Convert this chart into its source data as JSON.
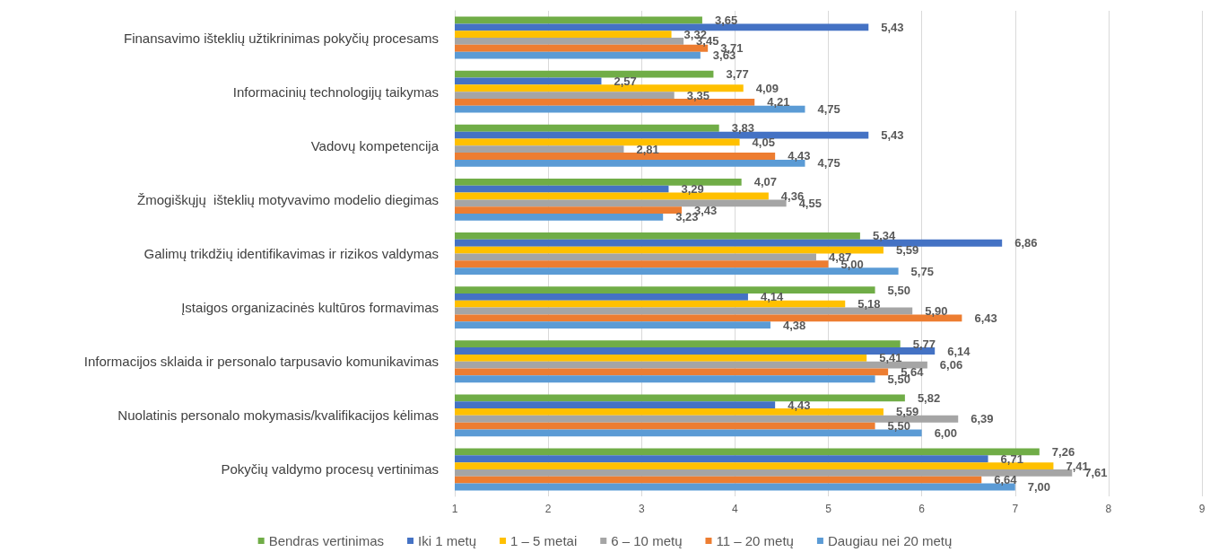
{
  "chart_data": {
    "type": "bar",
    "orientation": "horizontal",
    "categories": [
      "Finansavimo išteklių užtikrinimas pokyčių procesams",
      "Informacinių technologijų taikymas",
      "Vadovų kompetencija",
      "Žmogiškųjų  išteklių motyvavimo modelio diegimas",
      "Galimų trikdžių identifikavimas ir rizikos valdymas",
      "Įstaigos organizacinės kultūros formavimas",
      "Informacijos sklaida ir personalo tarpusavio komunikavimas",
      "Nuolatinis personalo mokymasis/kvalifikacijos kėlimas",
      "Pokyčių valdymo procesų vertinimas"
    ],
    "series": [
      {
        "name": "Bendras vertinimas",
        "color": "#70ad47",
        "values": [
          3.65,
          3.77,
          3.83,
          4.07,
          5.34,
          5.5,
          5.77,
          5.82,
          7.26
        ],
        "value_labels": [
          "3,65",
          "3,77",
          "3,83",
          "4,07",
          "5,34",
          "5,50",
          "5,77",
          "5,82",
          "7,26"
        ]
      },
      {
        "name": "Iki 1 metų",
        "color": "#4472c4",
        "values": [
          5.43,
          2.57,
          5.43,
          3.29,
          6.86,
          4.14,
          6.14,
          4.43,
          6.71
        ],
        "value_labels": [
          "5,43",
          "2,57",
          "5,43",
          "3,29",
          "6,86",
          "4,14",
          "6,14",
          "4,43",
          "6,71"
        ]
      },
      {
        "name": "1 – 5 metai",
        "color": "#ffc000",
        "values": [
          3.32,
          4.09,
          4.05,
          4.36,
          5.59,
          5.18,
          5.41,
          5.59,
          7.41
        ],
        "value_labels": [
          "3,32",
          "4,09",
          "4,05",
          "4,36",
          "5,59",
          "5,18",
          "5,41",
          "5,59",
          "7,41"
        ]
      },
      {
        "name": "6 – 10 metų",
        "color": "#a5a5a5",
        "values": [
          3.45,
          3.35,
          2.81,
          4.55,
          4.87,
          5.9,
          6.06,
          6.39,
          7.61
        ],
        "value_labels": [
          "3,45",
          "3,35",
          "2,81",
          "4,55",
          "4,87",
          "5,90",
          "6,06",
          "6,39",
          "7,61"
        ]
      },
      {
        "name": "11 – 20 metų",
        "color": "#ed7d31",
        "values": [
          3.71,
          4.21,
          4.43,
          3.43,
          5.0,
          6.43,
          5.64,
          5.5,
          6.64
        ],
        "value_labels": [
          "3,71",
          "4,21",
          "4,43",
          "3,43",
          "5,00",
          "6,43",
          "5,64",
          "5,50",
          "6,64"
        ]
      },
      {
        "name": "Daugiau nei 20 metų",
        "color": "#5b9bd5",
        "values": [
          3.63,
          4.75,
          4.75,
          3.23,
          5.75,
          4.38,
          5.5,
          6.0,
          7.0
        ],
        "value_labels": [
          "3,63",
          "4,75",
          "4,75",
          "3,23",
          "5,75",
          "4,38",
          "5,50",
          "6,00",
          "7,00"
        ]
      }
    ],
    "xlim": [
      1,
      9
    ],
    "xticks": [
      1,
      2,
      3,
      4,
      5,
      6,
      7,
      8,
      9
    ],
    "grid": "x",
    "legend": "bottom"
  }
}
